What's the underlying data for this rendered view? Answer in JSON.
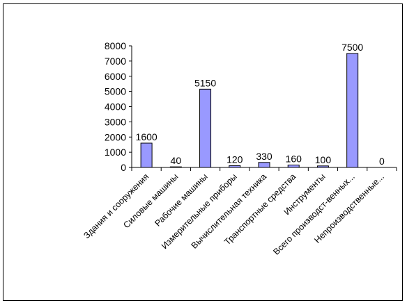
{
  "chart_data": {
    "type": "bar",
    "title": "",
    "xlabel": "",
    "ylabel": "",
    "ylim": [
      0,
      8000
    ],
    "yticks": [
      0,
      1000,
      2000,
      3000,
      4000,
      5000,
      6000,
      7000,
      8000
    ],
    "grid": false,
    "legend": "none",
    "categories": [
      "Здания и сооружения",
      "Силовые машины",
      "Рабочие машины",
      "Измерительные приборы",
      "Вычислительная техника",
      "Транспортные средства",
      "Инструменты",
      "Всего производст-венных...",
      "Непроизводственные..."
    ],
    "series": [
      {
        "values": [
          1600,
          40,
          5150,
          120,
          330,
          160,
          100,
          7500,
          0
        ],
        "labels": [
          "1600",
          "40",
          "5150",
          "120",
          "330",
          "160",
          "100",
          "7500",
          "0"
        ],
        "color": "#9999ff"
      }
    ]
  }
}
